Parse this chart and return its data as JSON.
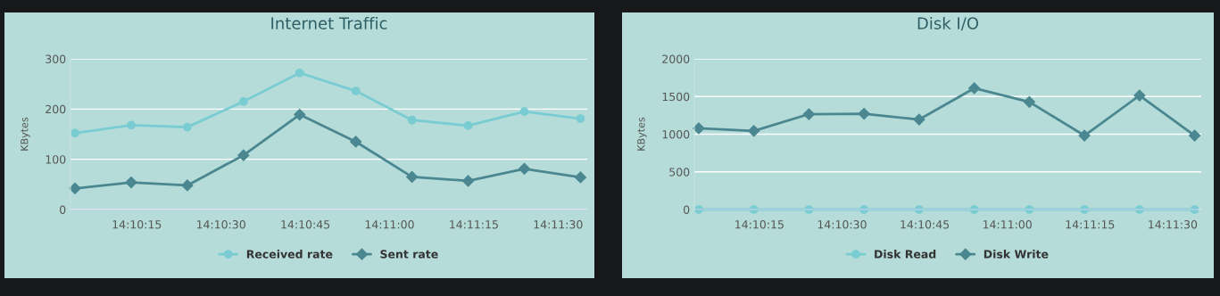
{
  "chart_data": [
    {
      "type": "line",
      "title": "Internet Traffic",
      "ylabel": "KBytes",
      "x": [
        14.167778,
        14.170556,
        14.173333,
        14.176111,
        14.178889,
        14.181667,
        14.184444,
        14.187222,
        14.19,
        14.192778
      ],
      "series": [
        {
          "name": "Received rate",
          "color": "#7accd3",
          "marker": "circle",
          "values": [
            152,
            168,
            164,
            215,
            272,
            236,
            178,
            167,
            195,
            181
          ]
        },
        {
          "name": "Sent rate",
          "color": "#4a8791",
          "marker": "diamond",
          "values": [
            42,
            54,
            48,
            108,
            189,
            135,
            65,
            57,
            81,
            64
          ]
        }
      ],
      "xlim": [
        14.167556,
        14.193111
      ],
      "xticks": [
        {
          "value": 14.170833,
          "label": "14:10:15"
        },
        {
          "value": 14.175,
          "label": "14:10:30"
        },
        {
          "value": 14.179167,
          "label": "14:10:45"
        },
        {
          "value": 14.183333,
          "label": "14:11:00"
        },
        {
          "value": 14.1875,
          "label": "14:11:15"
        },
        {
          "value": 14.191667,
          "label": "14:11:30"
        }
      ],
      "ylim": [
        0,
        300
      ],
      "yticks": [
        0,
        100,
        200,
        300
      ],
      "grid": "y",
      "legend": "bottom",
      "line_style": "solid"
    },
    {
      "type": "line",
      "title": "Disk I/O",
      "ylabel": "KBytes",
      "x": [
        14.167778,
        14.170556,
        14.173333,
        14.176111,
        14.178889,
        14.181667,
        14.184444,
        14.187222,
        14.19,
        14.192778
      ],
      "series": [
        {
          "name": "Disk Read",
          "color": "#7accd3",
          "marker": "circle",
          "values": [
            0,
            0,
            0,
            0,
            0,
            0,
            0,
            0,
            0,
            0
          ]
        },
        {
          "name": "Disk Write",
          "color": "#4a8791",
          "marker": "diamond",
          "values": [
            1078,
            1043,
            1266,
            1271,
            1195,
            1610,
            1428,
            982,
            1514,
            982
          ]
        }
      ],
      "xlim": [
        14.167556,
        14.193111
      ],
      "xticks": [
        {
          "value": 14.170833,
          "label": "14:10:15"
        },
        {
          "value": 14.175,
          "label": "14:10:30"
        },
        {
          "value": 14.179167,
          "label": "14:10:45"
        },
        {
          "value": 14.183333,
          "label": "14:11:00"
        },
        {
          "value": 14.1875,
          "label": "14:11:15"
        },
        {
          "value": 14.191667,
          "label": "14:11:30"
        }
      ],
      "ylim": [
        0,
        2000
      ],
      "yticks": [
        0,
        500,
        1000,
        1500,
        2000
      ],
      "grid": "y",
      "legend": "bottom",
      "line_style": "solid"
    }
  ]
}
